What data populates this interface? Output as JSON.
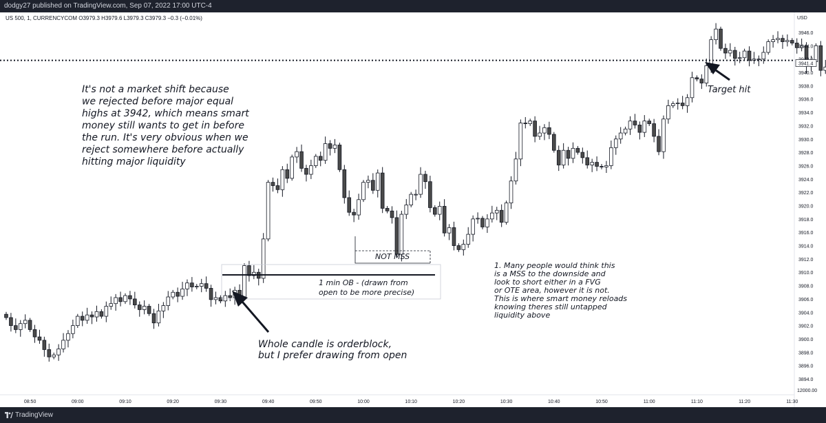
{
  "header": {
    "published_text": "dodgy27 published on TradingView.com, Sep 07, 2022 17:00 UTC-4"
  },
  "symbol_info": "US 500, 1, CURRENCYCOM  O3979.3  H3979.6  L3979.3  C3979.3  −0.3 (−0.01%)",
  "footer": {
    "brand": "TradingView"
  },
  "colors": {
    "up": "#ffffff",
    "down": "#4a4a4a",
    "wick": "#131722",
    "background": "#ffffff",
    "frame": "#1e222d"
  },
  "chart_data": {
    "type": "candlestick",
    "currency_label": "USD",
    "ylim": [
      3893,
      3947.5
    ],
    "yticks": [
      "3946.0",
      "3944.0",
      "3942.0",
      "3940.0",
      "3938.0",
      "3936.0",
      "3934.0",
      "3932.0",
      "3930.0",
      "3928.0",
      "3926.0",
      "3924.0",
      "3922.0",
      "3920.0",
      "3918.0",
      "3916.0",
      "3914.0",
      "3912.0",
      "3910.0",
      "3908.0",
      "3906.0",
      "3904.0",
      "3902.0",
      "3900.0",
      "3898.0",
      "3896.0",
      "3894.0"
    ],
    "xticks": [
      "08:50",
      "09:00",
      "09:10",
      "09:20",
      "09:30",
      "09:40",
      "09:50",
      "10:00",
      "10:10",
      "10:20",
      "10:30",
      "10:40",
      "10:50",
      "11:00",
      "11:10",
      "11:20",
      "11:30"
    ],
    "x_start": "08:45",
    "minutes_per_bar": 1,
    "last_price_label": "3941.4",
    "axis_bottom_label": "12000.00",
    "equal_highs_level": 3941.8,
    "closes": [
      3903.2,
      3902.0,
      3901.4,
      3902.3,
      3902.8,
      3901.4,
      3900.3,
      3899.8,
      3898.4,
      3897.3,
      3897.6,
      3898.5,
      3899.8,
      3900.8,
      3902.0,
      3903.4,
      3902.8,
      3903.6,
      3903.3,
      3904.1,
      3903.4,
      3904.9,
      3905.3,
      3906.2,
      3905.6,
      3906.5,
      3906.0,
      3905.1,
      3904.4,
      3904.9,
      3903.8,
      3902.4,
      3904.2,
      3905.0,
      3906.3,
      3907.0,
      3906.4,
      3907.5,
      3908.4,
      3907.8,
      3907.9,
      3908.3,
      3907.6,
      3905.9,
      3906.2,
      3905.7,
      3906.5,
      3906.2,
      3907.3,
      3906.1,
      3911.0,
      3909.5,
      3910.0,
      3909.1,
      3915.0,
      3923.5,
      3923.0,
      3922.4,
      3925.4,
      3924.1,
      3927.3,
      3928.1,
      3925.6,
      3924.7,
      3926.0,
      3927.4,
      3926.8,
      3929.3,
      3928.6,
      3929.1,
      3925.4,
      3921.2,
      3919.0,
      3918.6,
      3920.9,
      3923.5,
      3923.8,
      3922.3,
      3924.9,
      3919.6,
      3919.2,
      3918.2,
      3912.7,
      3918.7,
      3920.1,
      3921.7,
      3921.7,
      3924.7,
      3923.6,
      3919.7,
      3918.7,
      3919.9,
      3915.9,
      3916.7,
      3914.0,
      3913.4,
      3914.2,
      3915.7,
      3918.0,
      3918.1,
      3916.8,
      3918.0,
      3918.9,
      3919.3,
      3917.5,
      3920.4,
      3923.7,
      3927.0,
      3932.4,
      3932.3,
      3932.7,
      3930.4,
      3930.9,
      3931.7,
      3930.7,
      3928.3,
      3926.1,
      3928.3,
      3927.1,
      3928.6,
      3928.0,
      3927.2,
      3926.1,
      3926.5,
      3925.9,
      3925.8,
      3926.0,
      3928.7,
      3930.0,
      3930.9,
      3931.5,
      3932.7,
      3932.1,
      3931.0,
      3932.7,
      3932.3,
      3930.4,
      3928.1,
      3933.0,
      3935.0,
      3935.3,
      3935.4,
      3935.0,
      3936.2,
      3939.2,
      3939.0,
      3938.4,
      3941.0,
      3944.9,
      3946.5,
      3943.6,
      3942.9,
      3943.3,
      3942.1,
      3942.2,
      3943.2,
      3941.8,
      3942.0,
      3942.0,
      3943.0,
      3944.6,
      3944.9,
      3945.1,
      3944.6,
      3944.8,
      3944.4,
      3943.7,
      3944.0,
      3940.9,
      3941.6,
      3944.0,
      3940.3,
      3940.8,
      3941.4
    ],
    "annotations": {
      "market_shift_note": "It's not a market shift because\nwe rejected before major equal\nhighs at 3942, which means smart\nmoney still wants to get in before\nthe run. It's very obvious when we\nreject  somewhere before actually\nhitting major liquidity",
      "target_hit": "Target hit",
      "not_mss": "NOT MSS",
      "ob_label": "1 min OB - (drawn from\nopen to be more precise)",
      "orderblock_note": "Whole candle is orderblock,\nbut I prefer drawing from open",
      "mss_note": "1. Many people would think this\nis a MSS to the downside and\nlook to short either in a FVG\nor OTE area, however it is not.\n\nThis is where smart money reloads\nknowing theres still untapped\nliquidity above"
    }
  }
}
